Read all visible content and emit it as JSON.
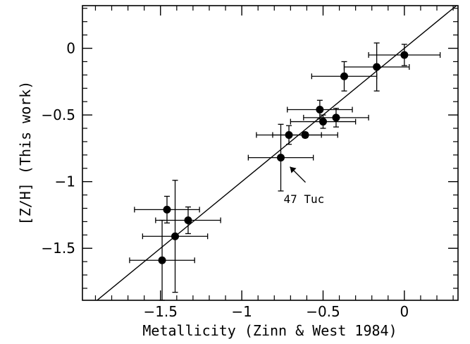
{
  "chart_data": {
    "type": "scatter",
    "xlabel": "Metallicity (Zinn & West 1984)",
    "ylabel": "[Z/H] (This work)",
    "xlim": [
      -1.98,
      0.33
    ],
    "ylim": [
      -1.89,
      0.32
    ],
    "xticks": [
      -1.5,
      -1,
      -0.5,
      0
    ],
    "xtick_labels": [
      "−1.5",
      "−1",
      "−0.5",
      "0"
    ],
    "yticks": [
      -1.5,
      -1,
      -0.5,
      0
    ],
    "ytick_labels": [
      "−1.5",
      "−1",
      "−0.5",
      "0"
    ],
    "grid": false,
    "reference_line": {
      "type": "identity",
      "from": [
        -1.98,
        -1.98
      ],
      "to": [
        0.33,
        0.33
      ]
    },
    "points": [
      {
        "x": 0.0,
        "y": -0.05,
        "xerr": 0.22,
        "yerr": 0.08
      },
      {
        "x": -0.17,
        "y": -0.14,
        "xerr": 0.2,
        "yerr": 0.18
      },
      {
        "x": -0.37,
        "y": -0.21,
        "xerr": 0.2,
        "yerr": 0.11
      },
      {
        "x": -0.52,
        "y": -0.46,
        "xerr": 0.2,
        "yerr": 0.07
      },
      {
        "x": -0.42,
        "y": -0.52,
        "xerr": 0.2,
        "yerr": 0.07
      },
      {
        "x": -0.5,
        "y": -0.55,
        "xerr": 0.2,
        "yerr": 0.05
      },
      {
        "x": -0.61,
        "y": -0.65,
        "xerr": 0.2,
        "yerr": 0.02
      },
      {
        "x": -0.71,
        "y": -0.65,
        "xerr": 0.2,
        "yerr": 0.07
      },
      {
        "x": -0.76,
        "y": -0.82,
        "xerr": 0.2,
        "yerr": 0.25
      },
      {
        "x": -1.46,
        "y": -1.21,
        "xerr": 0.2,
        "yerr": 0.1
      },
      {
        "x": -1.33,
        "y": -1.29,
        "xerr": 0.2,
        "yerr": 0.1
      },
      {
        "x": -1.41,
        "y": -1.41,
        "xerr": 0.2,
        "yerr": 0.42
      },
      {
        "x": -1.49,
        "y": -1.59,
        "xerr": 0.2,
        "yerr": 0.3
      }
    ],
    "annotations": [
      {
        "text": "47 Tuc",
        "target": [
          -0.76,
          -0.82
        ],
        "text_at": [
          -0.6,
          -1.15
        ]
      }
    ]
  }
}
